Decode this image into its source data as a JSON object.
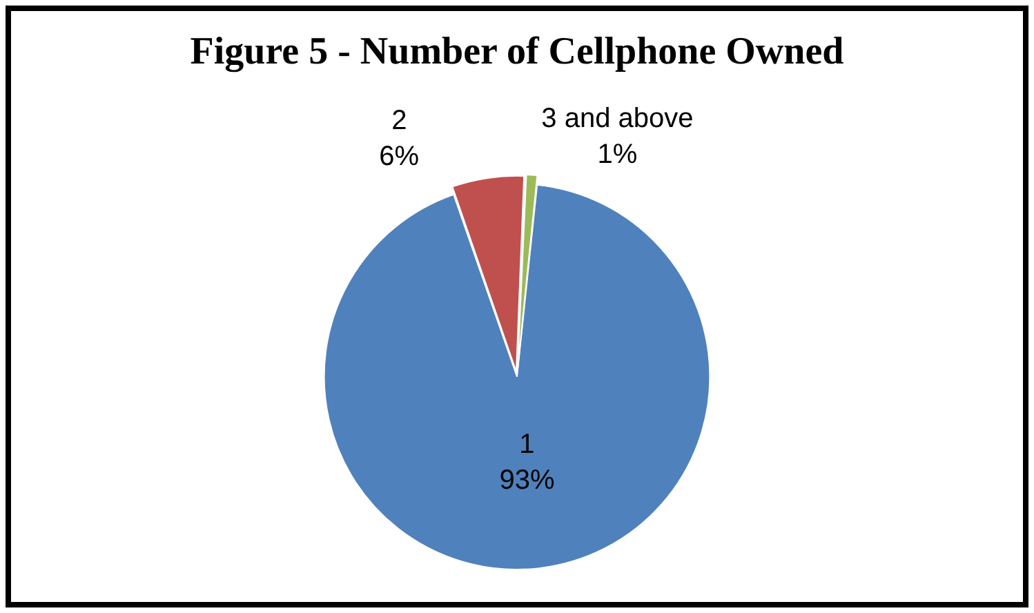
{
  "chart_data": {
    "type": "pie",
    "title": "Figure 5 - Number of Cellphone Owned",
    "categories": [
      "1",
      "2",
      "3 and above"
    ],
    "values": [
      93,
      6,
      1
    ],
    "colors": [
      "#4f81bd",
      "#c0504d",
      "#9bbb59"
    ],
    "value_labels": [
      "93%",
      "6%",
      "1%"
    ],
    "legend": false
  }
}
